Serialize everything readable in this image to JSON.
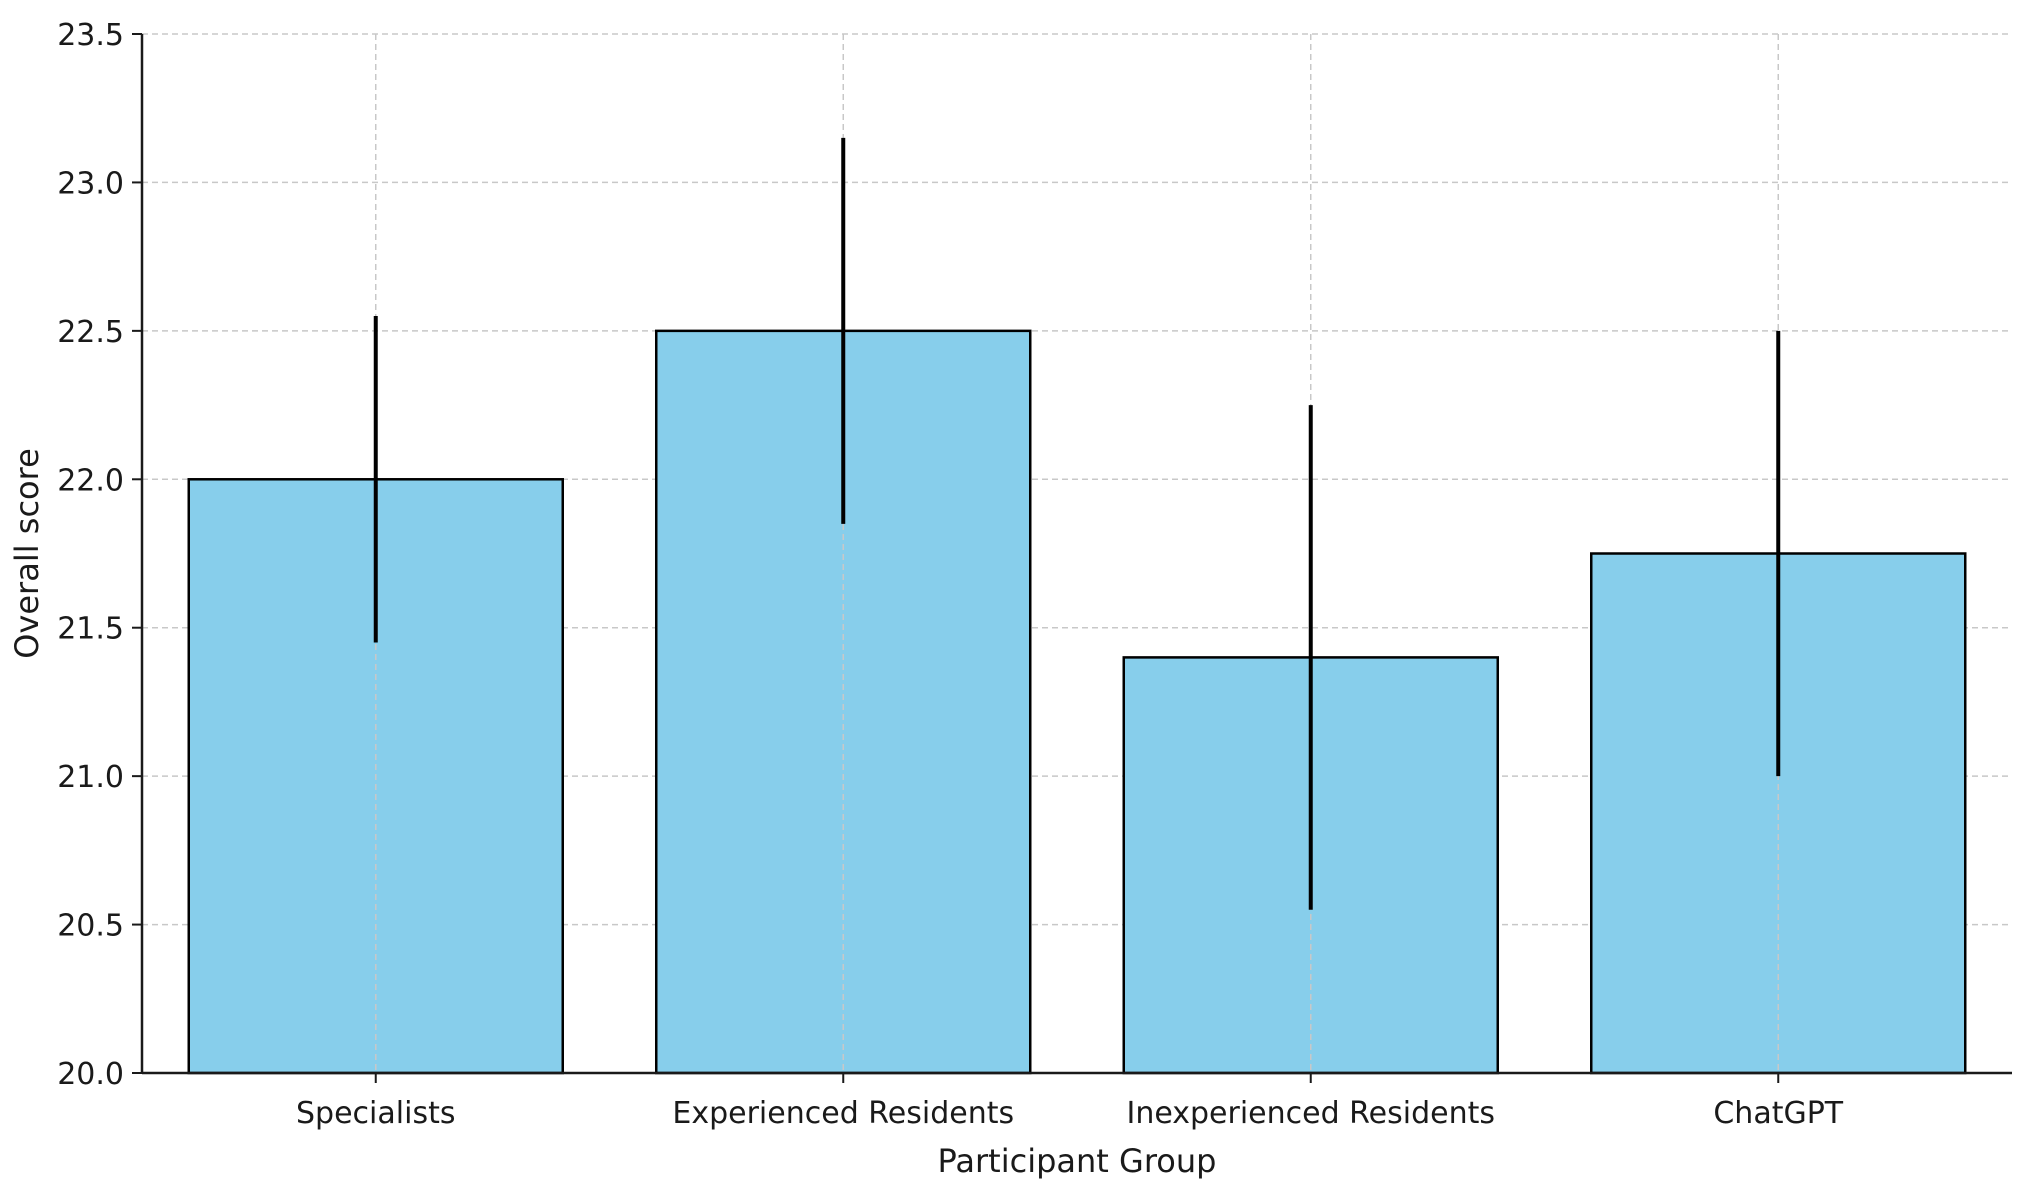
{
  "chart_data": {
    "type": "bar",
    "title": "",
    "xlabel": "Participant Group",
    "ylabel": "Overall score",
    "categories": [
      "Specialists",
      "Experienced Residents",
      "Inexperienced Residents",
      "ChatGPT"
    ],
    "values": [
      22.0,
      22.5,
      21.4,
      21.75
    ],
    "error_low": [
      21.45,
      21.85,
      20.55,
      21.0
    ],
    "error_high": [
      22.55,
      23.15,
      22.25,
      22.5
    ],
    "ylim": [
      20.0,
      23.5
    ],
    "yticks": [
      "20.0",
      "20.5",
      "21.0",
      "21.5",
      "22.0",
      "22.5",
      "23.0",
      "23.5"
    ],
    "grid": true,
    "bar_color": "#87CEEB",
    "bar_edge_color": "#000000",
    "error_bar_color": "#000000"
  }
}
